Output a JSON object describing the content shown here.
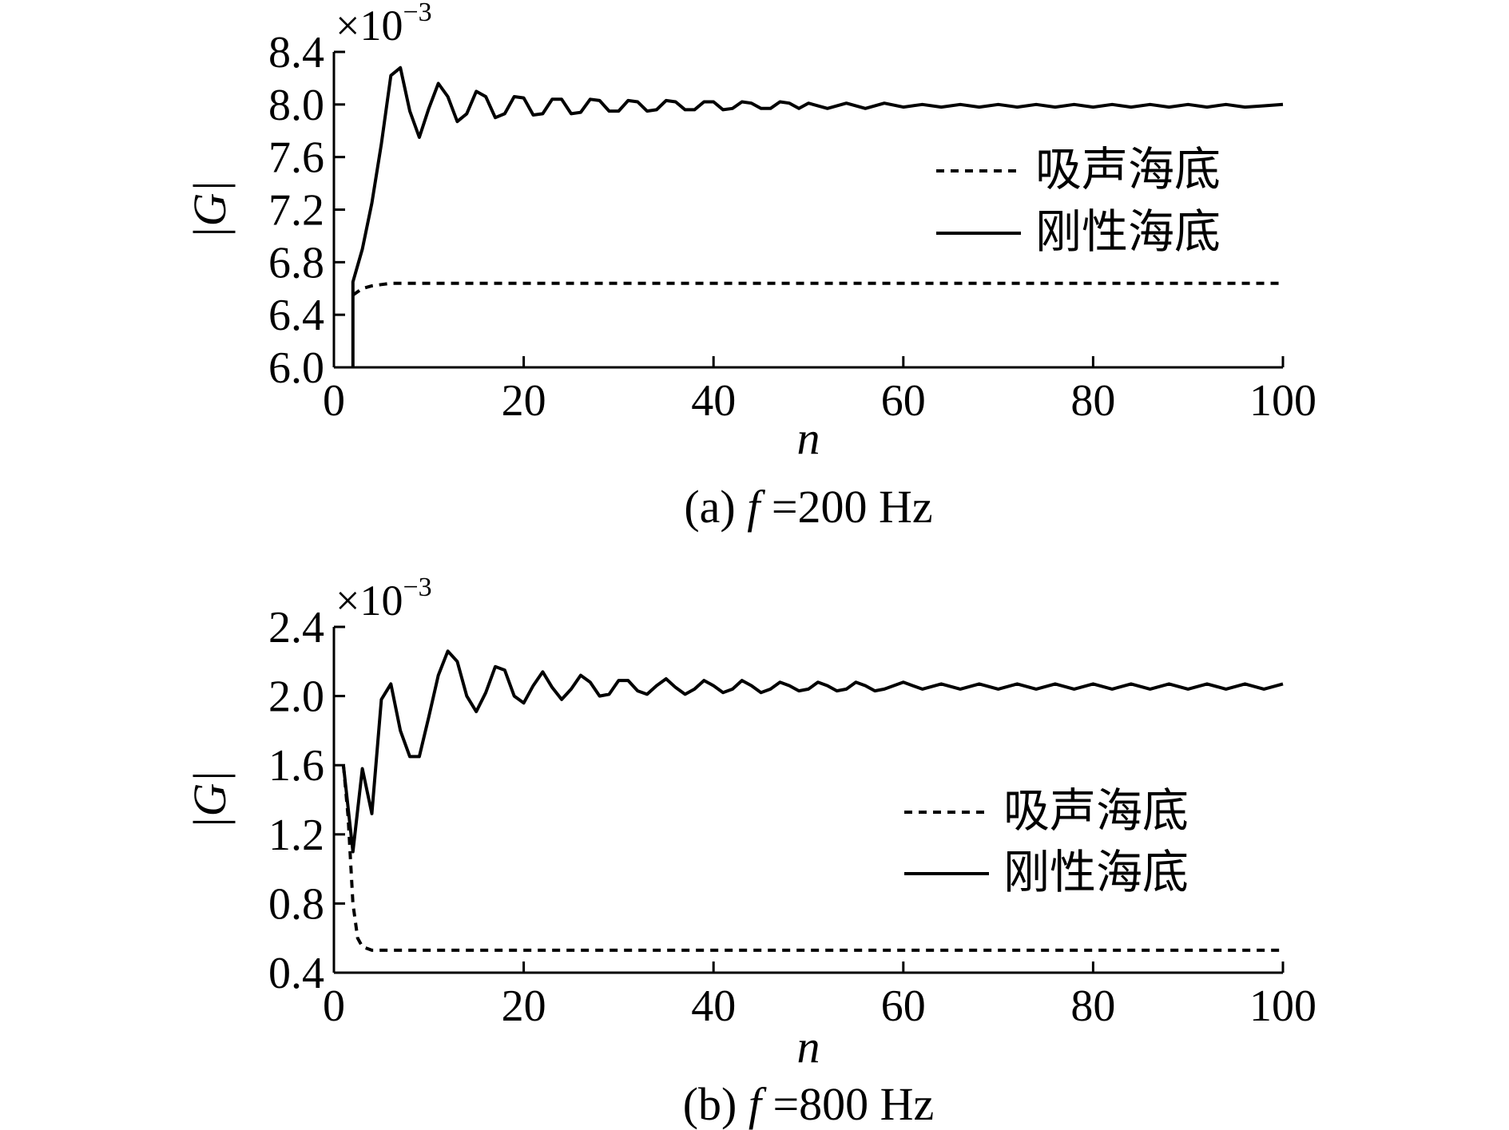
{
  "chart_data": [
    {
      "type": "line",
      "panel": "a",
      "caption_prefix": "(a) ",
      "caption_var": "f",
      "caption_suffix": " =200 Hz",
      "xlabel": "n",
      "ylabel": "|G|",
      "scale_factor_base": "×10",
      "scale_factor_exp": "−3",
      "xlim": [
        0,
        100
      ],
      "ylim": [
        6.0,
        8.4
      ],
      "xticks": [
        0,
        20,
        40,
        60,
        80,
        100
      ],
      "yticks": [
        6.0,
        6.4,
        6.8,
        7.2,
        7.6,
        8.0,
        8.4
      ],
      "ytick_labels": [
        "6.0",
        "6.4",
        "6.8",
        "7.2",
        "7.6",
        "8.0",
        "8.4"
      ],
      "grid": false,
      "legend": "right",
      "series": [
        {
          "name": "吸声海底",
          "style": "dashed",
          "x": [
            2,
            3,
            4,
            5,
            6,
            8,
            10,
            15,
            20,
            30,
            50,
            70,
            100
          ],
          "y": [
            6.55,
            6.6,
            6.62,
            6.63,
            6.64,
            6.64,
            6.64,
            6.64,
            6.64,
            6.64,
            6.64,
            6.64,
            6.64
          ]
        },
        {
          "name": "刚性海底",
          "style": "solid",
          "x": [
            2,
            2,
            3,
            4,
            5,
            6,
            7,
            8,
            9,
            10,
            11,
            12,
            13,
            14,
            15,
            16,
            17,
            18,
            19,
            20,
            21,
            22,
            23,
            24,
            25,
            26,
            27,
            28,
            29,
            30,
            31,
            32,
            33,
            34,
            35,
            36,
            37,
            38,
            39,
            40,
            41,
            42,
            43,
            44,
            45,
            46,
            47,
            48,
            49,
            50,
            52,
            54,
            56,
            58,
            60,
            62,
            64,
            66,
            68,
            70,
            72,
            74,
            76,
            78,
            80,
            82,
            84,
            86,
            88,
            90,
            92,
            94,
            96,
            98,
            100
          ],
          "y": [
            6.0,
            6.65,
            6.9,
            7.25,
            7.7,
            8.22,
            8.28,
            7.95,
            7.75,
            7.97,
            8.16,
            8.06,
            7.87,
            7.93,
            8.1,
            8.06,
            7.9,
            7.93,
            8.06,
            8.05,
            7.92,
            7.93,
            8.04,
            8.04,
            7.93,
            7.94,
            8.04,
            8.03,
            7.95,
            7.95,
            8.03,
            8.02,
            7.95,
            7.96,
            8.03,
            8.02,
            7.96,
            7.96,
            8.02,
            8.02,
            7.96,
            7.97,
            8.02,
            8.01,
            7.97,
            7.97,
            8.02,
            8.01,
            7.97,
            8.01,
            7.97,
            8.01,
            7.97,
            8.01,
            7.98,
            8.0,
            7.98,
            8.0,
            7.98,
            8.0,
            7.98,
            8.0,
            7.98,
            8.0,
            7.98,
            8.0,
            7.98,
            8.0,
            7.98,
            8.0,
            7.98,
            8.0,
            7.98,
            7.99,
            8.0
          ]
        }
      ]
    },
    {
      "type": "line",
      "panel": "b",
      "caption_prefix": "(b) ",
      "caption_var": "f",
      "caption_suffix": " =800 Hz",
      "xlabel": "n",
      "ylabel": "|G|",
      "scale_factor_base": "×10",
      "scale_factor_exp": "−3",
      "xlim": [
        0,
        100
      ],
      "ylim": [
        0.4,
        2.4
      ],
      "xticks": [
        0,
        20,
        40,
        60,
        80,
        100
      ],
      "yticks": [
        0.4,
        0.8,
        1.2,
        1.6,
        2.0,
        2.4
      ],
      "ytick_labels": [
        "0.4",
        "0.8",
        "1.2",
        "1.6",
        "2.0",
        "2.4"
      ],
      "grid": false,
      "legend": "right",
      "series": [
        {
          "name": "吸声海底",
          "style": "dashed",
          "x": [
            1,
            1.5,
            2,
            2.5,
            3,
            4,
            6,
            10,
            20,
            50,
            100
          ],
          "y": [
            1.6,
            1.3,
            0.8,
            0.6,
            0.55,
            0.53,
            0.53,
            0.53,
            0.53,
            0.53,
            0.53
          ]
        },
        {
          "name": "刚性海底",
          "style": "solid",
          "x": [
            1,
            2,
            3,
            4,
            5,
            6,
            7,
            8,
            9,
            10,
            11,
            12,
            13,
            14,
            15,
            16,
            17,
            18,
            19,
            20,
            21,
            22,
            23,
            24,
            25,
            26,
            27,
            28,
            29,
            30,
            31,
            32,
            33,
            34,
            35,
            36,
            37,
            38,
            39,
            40,
            41,
            42,
            43,
            44,
            45,
            46,
            47,
            48,
            49,
            50,
            51,
            52,
            53,
            54,
            55,
            56,
            57,
            58,
            60,
            62,
            64,
            66,
            68,
            70,
            72,
            74,
            76,
            78,
            80,
            82,
            84,
            86,
            88,
            90,
            92,
            94,
            96,
            98,
            100
          ],
          "y": [
            1.6,
            1.1,
            1.58,
            1.32,
            1.98,
            2.07,
            1.8,
            1.65,
            1.65,
            1.88,
            2.12,
            2.26,
            2.2,
            2.0,
            1.91,
            2.02,
            2.17,
            2.15,
            2.0,
            1.96,
            2.06,
            2.14,
            2.05,
            1.98,
            2.04,
            2.12,
            2.08,
            2.0,
            2.01,
            2.09,
            2.09,
            2.03,
            2.01,
            2.06,
            2.1,
            2.05,
            2.01,
            2.04,
            2.09,
            2.06,
            2.02,
            2.04,
            2.09,
            2.06,
            2.02,
            2.04,
            2.08,
            2.06,
            2.03,
            2.04,
            2.08,
            2.06,
            2.03,
            2.04,
            2.08,
            2.06,
            2.03,
            2.04,
            2.08,
            2.04,
            2.07,
            2.04,
            2.07,
            2.04,
            2.07,
            2.04,
            2.07,
            2.04,
            2.07,
            2.04,
            2.07,
            2.04,
            2.07,
            2.04,
            2.07,
            2.04,
            2.07,
            2.04,
            2.07
          ]
        }
      ]
    }
  ]
}
